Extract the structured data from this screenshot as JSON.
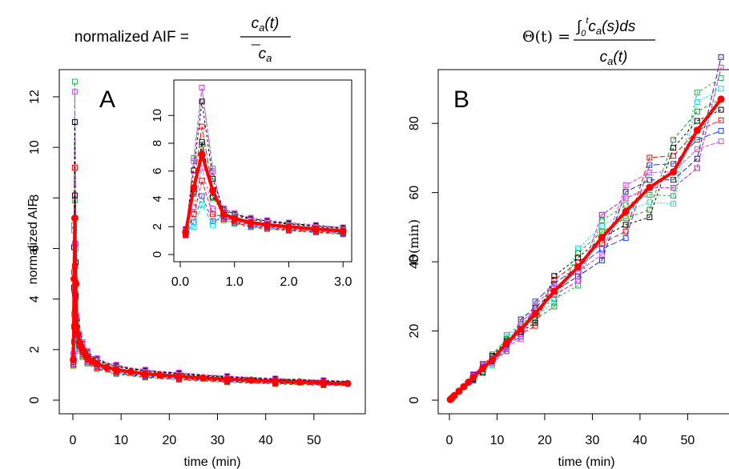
{
  "colors": {
    "black": "#000000",
    "red": "#ff0000",
    "green": "#22b14c",
    "blue": "#1f3fff",
    "cyan": "#00e5ee",
    "magenta": "#e040fb",
    "darkgreen": "#1a9a1a",
    "navy": "#1a237e"
  },
  "chart_data": [
    {
      "type": "line",
      "panel_label": "A",
      "title": "normalized AIF =",
      "title_formula_numerator": "c_a(t)",
      "title_formula_denominator": "c̄_a",
      "xlabel": "time (min)",
      "ylabel": "normalized AIF",
      "xlim": [
        0,
        58
      ],
      "ylim": [
        0,
        12.6
      ],
      "xticks": [
        0,
        10,
        20,
        30,
        40,
        50
      ],
      "yticks": [
        0,
        2,
        4,
        6,
        8,
        10,
        12
      ],
      "grid": false,
      "mean_series": {
        "color": "#ff0000",
        "x": [
          0.1,
          0.25,
          0.4,
          0.6,
          0.8,
          1.0,
          1.3,
          1.6,
          2.0,
          2.5,
          3,
          4,
          5,
          7,
          9,
          12,
          15,
          18,
          22,
          27,
          32,
          37,
          42,
          47,
          52,
          57
        ],
        "y": [
          1.6,
          4.8,
          7.2,
          4.6,
          2.9,
          2.6,
          2.3,
          2.15,
          2.0,
          1.85,
          1.7,
          1.55,
          1.45,
          1.3,
          1.22,
          1.12,
          1.05,
          1.0,
          0.95,
          0.88,
          0.83,
          0.79,
          0.75,
          0.72,
          0.69,
          0.66
        ]
      },
      "series_peaks": [
        {
          "color": "#22b14c",
          "peak": 12.6
        },
        {
          "color": "#e040fb",
          "peak": 12.2
        },
        {
          "color": "#000000",
          "peak": 11.0
        },
        {
          "color": "#ff0000",
          "peak": 9.2
        },
        {
          "color": "#22b14c",
          "peak": 7.9
        },
        {
          "color": "#000000",
          "peak": 8.1
        },
        {
          "color": "#1f3fff",
          "peak": 4.2
        },
        {
          "color": "#00e5ee",
          "peak": 3.6
        },
        {
          "color": "#e040fb",
          "peak": 6.2
        },
        {
          "color": "#ff0000",
          "peak": 5.3
        }
      ],
      "inset": {
        "xlim": [
          0,
          3.1
        ],
        "ylim": [
          0,
          12.2
        ],
        "xticks": [
          0.0,
          1.0,
          2.0,
          3.0
        ],
        "xtick_labels": [
          "0.0",
          "1.0",
          "2.0",
          "3.0"
        ],
        "yticks": [
          0,
          2,
          4,
          6,
          8,
          10
        ],
        "x": [
          0.1,
          0.25,
          0.4,
          0.6,
          0.8,
          1.0,
          1.3,
          1.6,
          2.0,
          2.5,
          3.0
        ]
      }
    },
    {
      "type": "line",
      "panel_label": "B",
      "title": "Θ(t) =",
      "title_formula_numerator": "∫₀ᵗ c_a(s) ds",
      "title_formula_denominator": "c_a(t)",
      "xlabel": "time (min)",
      "ylabel": "Θ(min)",
      "xlim": [
        0,
        58
      ],
      "ylim": [
        0,
        93
      ],
      "xticks": [
        0,
        10,
        20,
        30,
        40,
        50
      ],
      "yticks": [
        0,
        20,
        40,
        60,
        80
      ],
      "grid": false,
      "mean_series": {
        "color": "#ff0000",
        "x": [
          0.2,
          0.5,
          1,
          2,
          3,
          4,
          5,
          7,
          9,
          12,
          15,
          18,
          22,
          27,
          32,
          37,
          42,
          47,
          52,
          57
        ],
        "y": [
          0.2,
          0.6,
          1.3,
          2.6,
          3.9,
          5.2,
          6.6,
          9.2,
          11.6,
          16.5,
          20.5,
          25.0,
          31.5,
          38.5,
          47.0,
          54.5,
          61.5,
          66.0,
          78.0,
          87.0
        ]
      }
    }
  ]
}
